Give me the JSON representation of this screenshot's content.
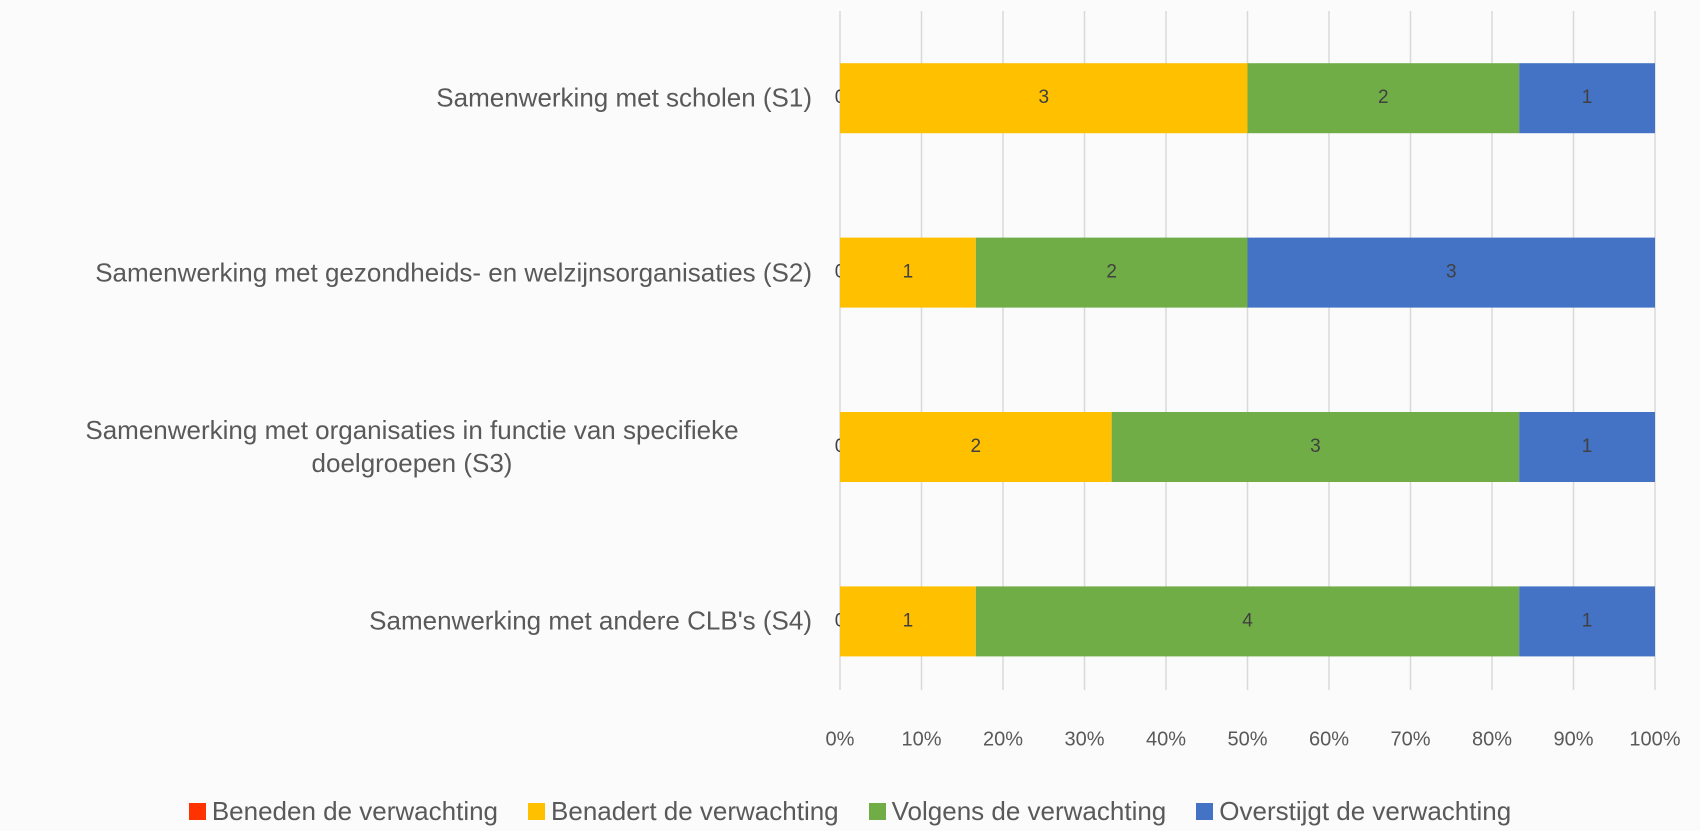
{
  "chart_data": {
    "type": "bar",
    "orientation": "horizontal",
    "stack": "percent",
    "categories": [
      "Samenwerking met scholen (S1)",
      "Samenwerking met gezondheids- en welzijnsorganisaties (S2)",
      "Samenwerking met organisaties in functie van specifieke doelgroepen (S3)",
      "Samenwerking met andere CLB's (S4)"
    ],
    "series": [
      {
        "name": "Beneden de verwachting",
        "color": "#ff3300",
        "values": [
          0,
          0,
          0,
          0
        ]
      },
      {
        "name": "Benadert de verwachting",
        "color": "#ffc000",
        "values": [
          3,
          1,
          2,
          1
        ]
      },
      {
        "name": "Volgens de verwachting",
        "color": "#70ad47",
        "values": [
          2,
          2,
          3,
          4
        ]
      },
      {
        "name": "Overstijgt de verwachting",
        "color": "#4472c4",
        "values": [
          1,
          3,
          1,
          1
        ]
      }
    ],
    "xlim": [
      0,
      100
    ],
    "xticks": [
      {
        "value": 0,
        "label": "0%"
      },
      {
        "value": 10,
        "label": "10%"
      },
      {
        "value": 20,
        "label": "20%"
      },
      {
        "value": 30,
        "label": "30%"
      },
      {
        "value": 40,
        "label": "40%"
      },
      {
        "value": 50,
        "label": "50%"
      },
      {
        "value": 60,
        "label": "60%"
      },
      {
        "value": 70,
        "label": "70%"
      },
      {
        "value": 80,
        "label": "80%"
      },
      {
        "value": 90,
        "label": "90%"
      },
      {
        "value": 100,
        "label": "100%"
      }
    ],
    "grid": true,
    "legend": "bottom"
  }
}
